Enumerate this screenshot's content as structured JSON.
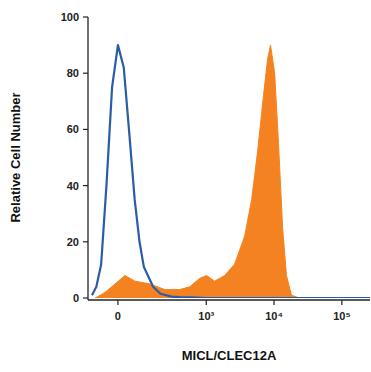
{
  "chart_data": {
    "type": "histogram_overlay",
    "x_label": "MICL/CLEC12A",
    "y_label": "Relative Cell Number",
    "log": "x",
    "xlim": [
      -120,
      260000
    ],
    "xticks": [
      0,
      {
        "value": 1000,
        "label": "10³"
      },
      {
        "value": 10000,
        "label": "10⁴"
      },
      {
        "value": 100000,
        "label": "10⁵"
      }
    ],
    "ylim": [
      0,
      100
    ],
    "yticks": [
      0,
      20,
      40,
      60,
      80,
      100
    ],
    "grid": false,
    "series": [
      {
        "type": "area",
        "color": "#f58220",
        "x": [
          -85,
          -45,
          -10,
          24,
          61,
          131,
          235,
          402,
          570,
          800,
          1015,
          1330,
          1870,
          2620,
          3690,
          4680,
          5720,
          6990,
          8040,
          8880,
          10220,
          11640,
          13390,
          15250,
          18080,
          23700
        ],
        "values": [
          0,
          2,
          5,
          8,
          6,
          5,
          3,
          3,
          4,
          7,
          8,
          6,
          8,
          12,
          22,
          35,
          52,
          72,
          85,
          90,
          80,
          55,
          25,
          8,
          1,
          0
        ]
      },
      {
        "type": "line",
        "color": "#2a5ca8",
        "x": [
          -100,
          -80,
          -60,
          -40,
          -20,
          0,
          20,
          40,
          60,
          80,
          100,
          150,
          200,
          300,
          400,
          600,
          1000,
          260000
        ],
        "values": [
          1,
          4,
          12,
          40,
          75,
          90,
          82,
          58,
          35,
          20,
          11,
          4,
          1.5,
          0.5,
          0.3,
          0.2,
          0,
          0
        ]
      }
    ]
  }
}
